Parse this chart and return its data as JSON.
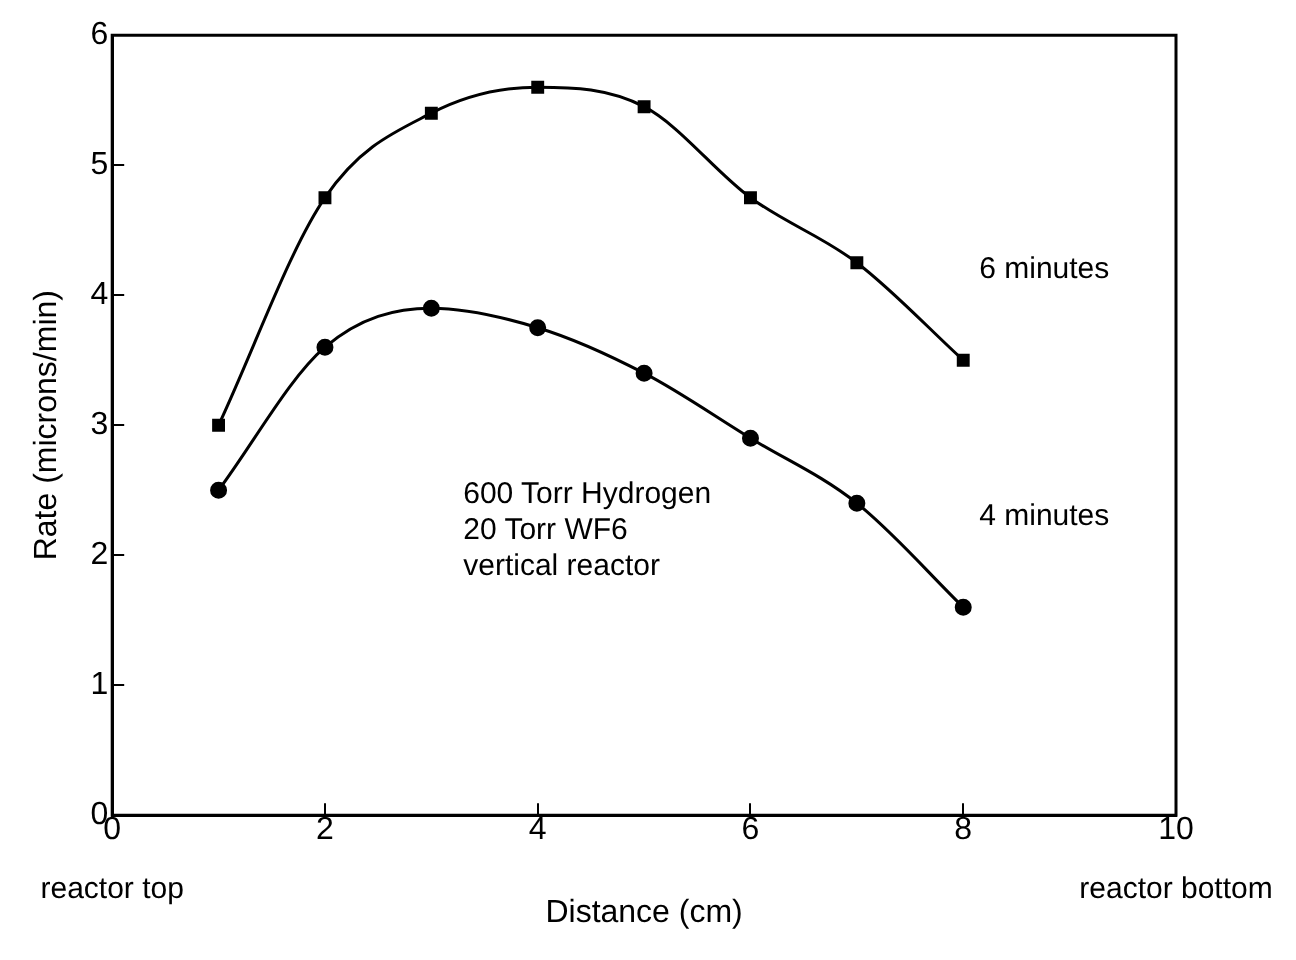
{
  "chart_data": {
    "type": "line",
    "xlabel": "Distance (cm)",
    "ylabel": "Rate (microns/min)",
    "x": [
      1,
      2,
      3,
      4,
      5,
      6,
      7,
      8
    ],
    "series": [
      {
        "name": "6 minutes",
        "color": "#000000",
        "marker": "square",
        "values": [
          3.0,
          4.75,
          5.4,
          5.6,
          5.45,
          4.75,
          4.25,
          3.5
        ]
      },
      {
        "name": "4 minutes",
        "color": "#000000",
        "marker": "circle",
        "values": [
          2.5,
          3.6,
          3.9,
          3.75,
          3.4,
          2.9,
          2.4,
          1.6
        ]
      }
    ],
    "xlim": [
      0,
      10
    ],
    "xticks": [
      0,
      2,
      4,
      6,
      8,
      10
    ],
    "ylim": [
      0,
      6
    ],
    "yticks": [
      0,
      1,
      2,
      3,
      4,
      5,
      6
    ],
    "grid": false,
    "legend": false,
    "annotations": [
      "600 Torr Hydrogen\n20 Torr WF6\nvertical reactor",
      "reactor top",
      "reactor bottom"
    ]
  }
}
